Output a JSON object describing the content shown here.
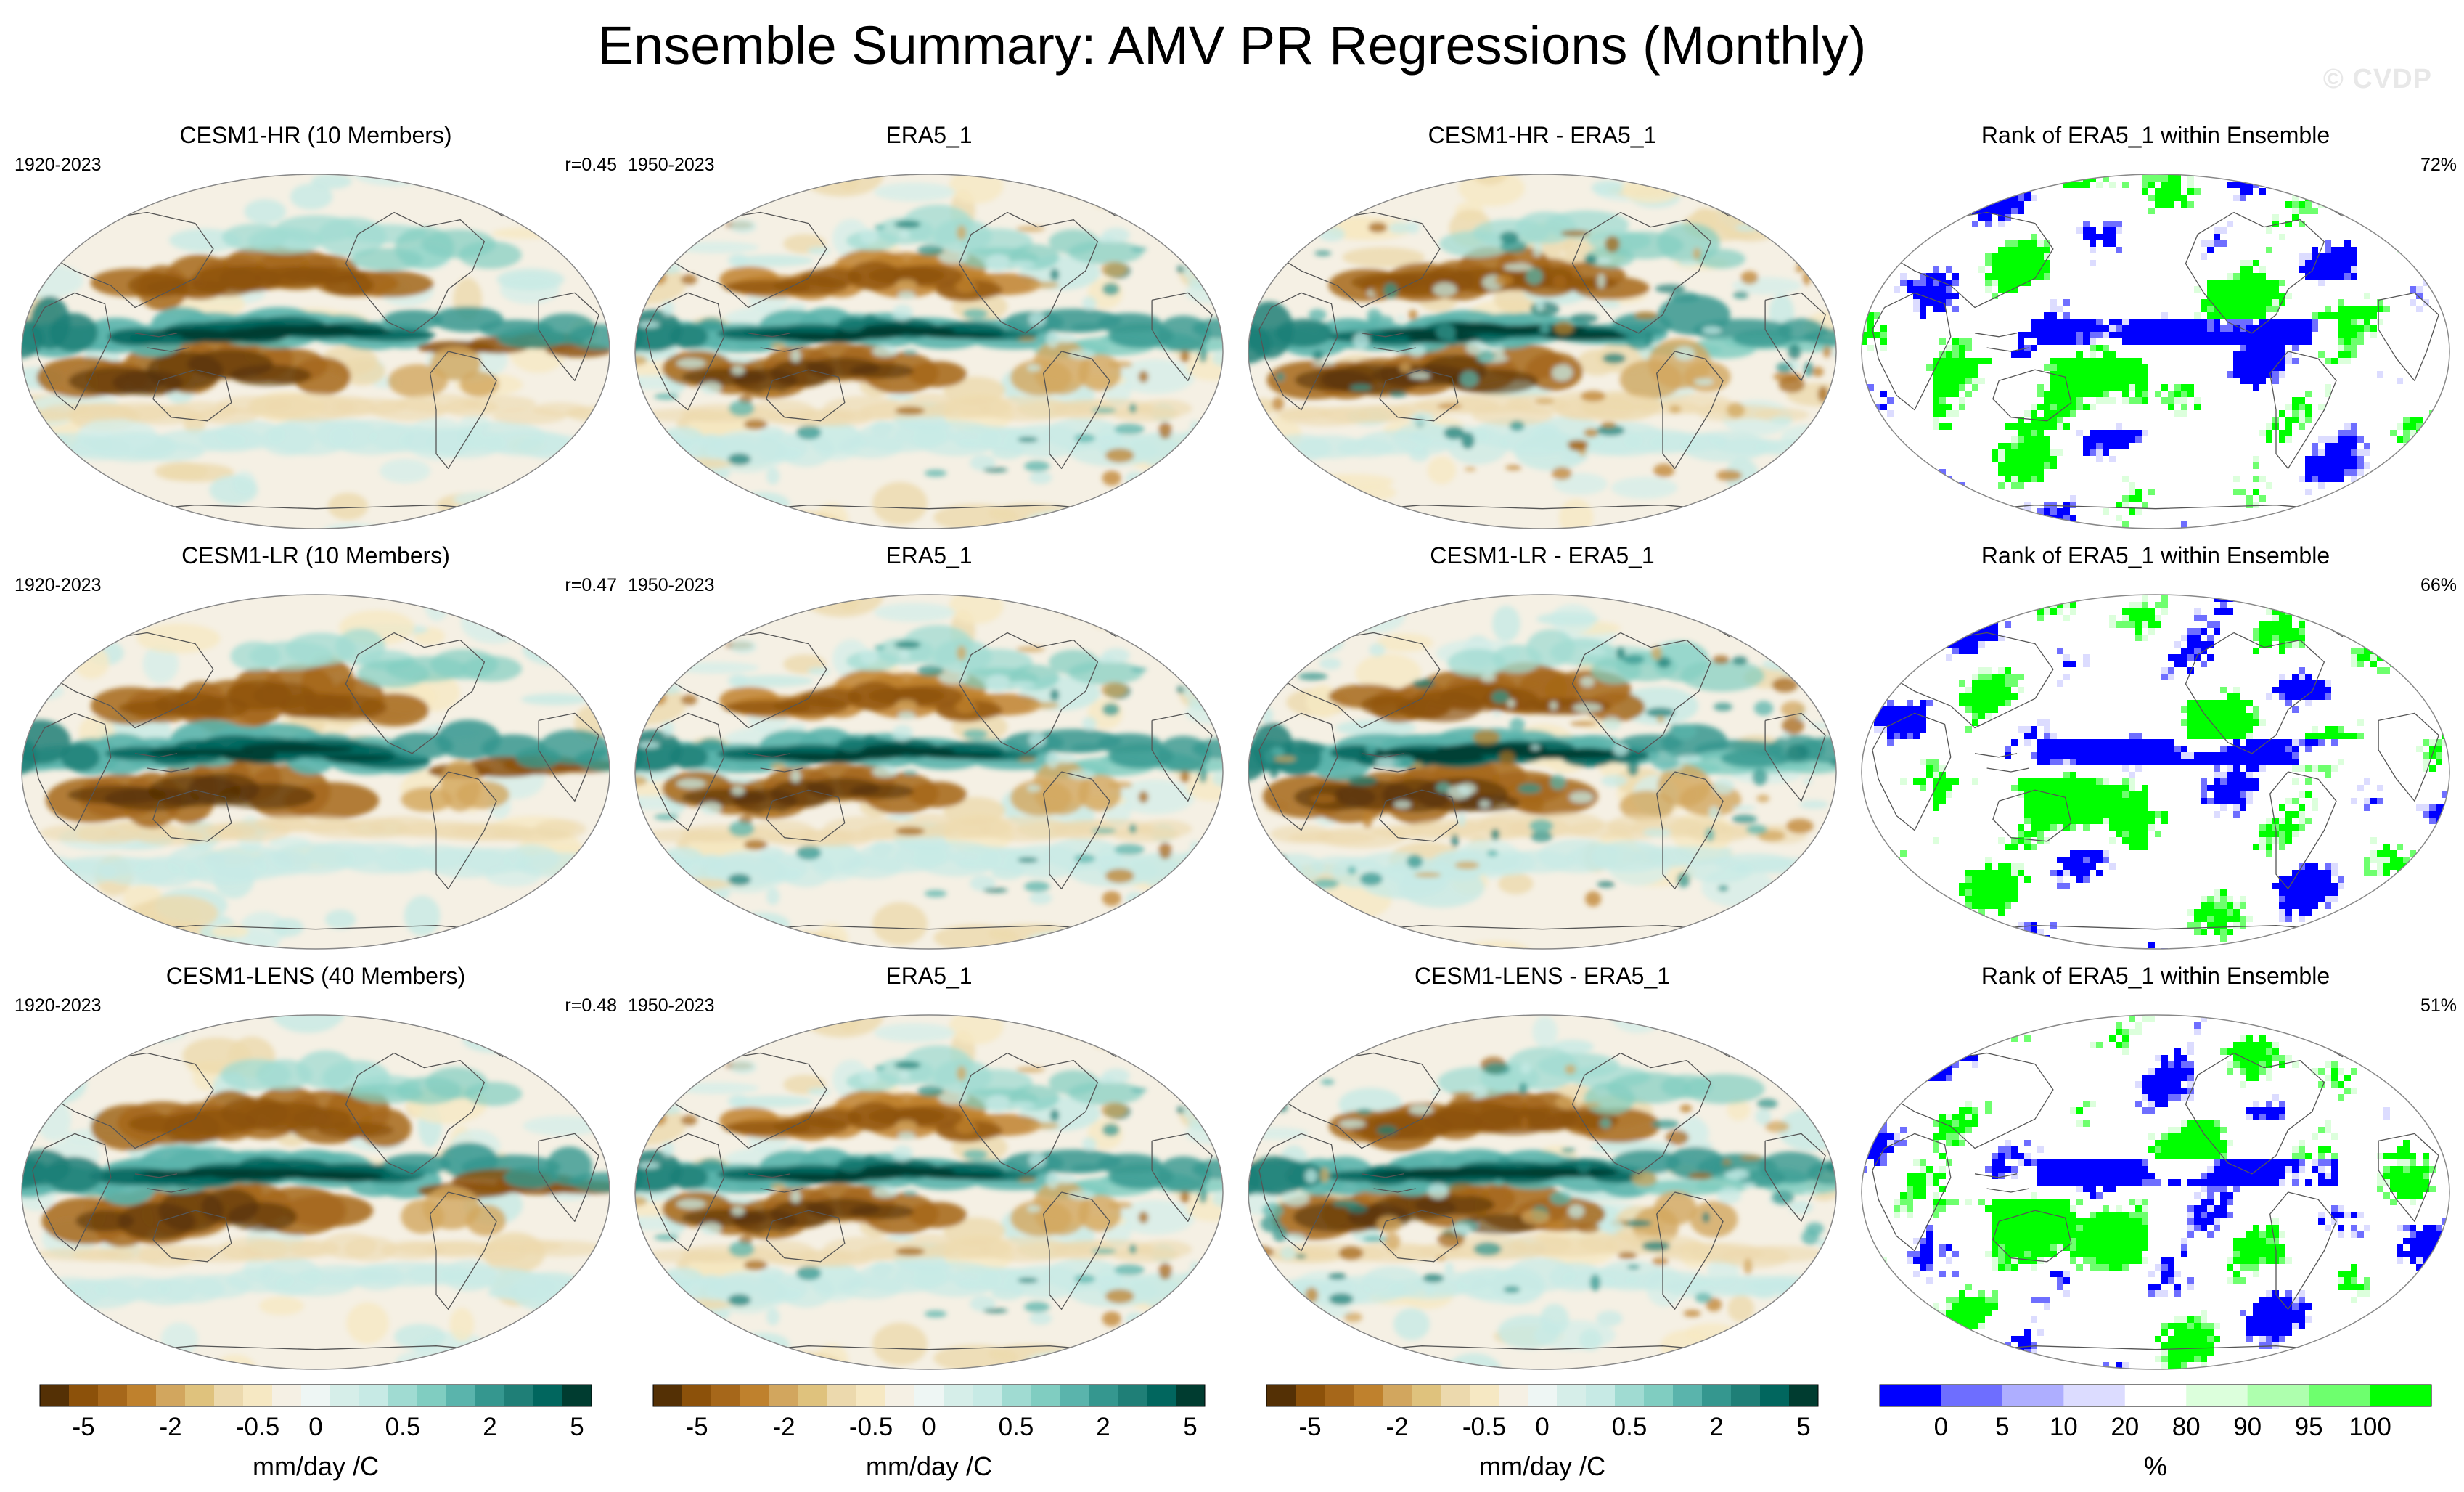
{
  "title": "Ensemble Summary: AMV PR Regressions (Monthly)",
  "watermark": "© CVDP",
  "colors": {
    "brbg": [
      "#543005",
      "#8c510a",
      "#a6671a",
      "#bf812d",
      "#d2a65e",
      "#dfc27d",
      "#ecd9ad",
      "#f6e8c3",
      "#f5f0e4",
      "#eef6f4",
      "#d6eee9",
      "#c7eae5",
      "#a0dbd2",
      "#80cdc1",
      "#5ab4ac",
      "#35978f",
      "#1f7f77",
      "#01665e",
      "#003c30"
    ],
    "rank": [
      "#0000ff",
      "#6e6eff",
      "#aeaeff",
      "#dcdcff",
      "#ffffff",
      "#dcffdc",
      "#aeffae",
      "#6eff6e",
      "#00ff00"
    ],
    "coast": "#555555",
    "border": "#888888"
  },
  "rows": [
    {
      "model": "CESM1-HR (10 Members)",
      "years": "1920-2023",
      "r": "r=0.45",
      "obs": "ERA5_1",
      "obs_years": "1950-2023",
      "diff": "CESM1-HR - ERA5_1",
      "rank_title": "Rank of ERA5_1 within Ensemble",
      "rank_pct": "72%"
    },
    {
      "model": "CESM1-LR (10 Members)",
      "years": "1920-2023",
      "r": "r=0.47",
      "obs": "ERA5_1",
      "obs_years": "1950-2023",
      "diff": "CESM1-LR - ERA5_1",
      "rank_title": "Rank of ERA5_1 within Ensemble",
      "rank_pct": "66%"
    },
    {
      "model": "CESM1-LENS (40 Members)",
      "years": "1920-2023",
      "r": "r=0.48",
      "obs": "ERA5_1",
      "obs_years": "1950-2023",
      "diff": "CESM1-LENS - ERA5_1",
      "rank_title": "Rank of ERA5_1 within Ensemble",
      "rank_pct": "51%"
    }
  ],
  "colorbars": [
    {
      "ticks": [
        "-5",
        "-2",
        "-0.5",
        "0",
        "0.5",
        "2",
        "5"
      ],
      "label": "mm/day /C"
    },
    {
      "ticks": [
        "-5",
        "-2",
        "-0.5",
        "0",
        "0.5",
        "2",
        "5"
      ],
      "label": "mm/day /C"
    },
    {
      "ticks": [
        "-5",
        "-2",
        "-0.5",
        "0",
        "0.5",
        "2",
        "5"
      ],
      "label": "mm/day /C"
    },
    {
      "ticks": [
        "0",
        "5",
        "10",
        "20",
        "80",
        "90",
        "95",
        "100"
      ],
      "label": "%"
    }
  ]
}
